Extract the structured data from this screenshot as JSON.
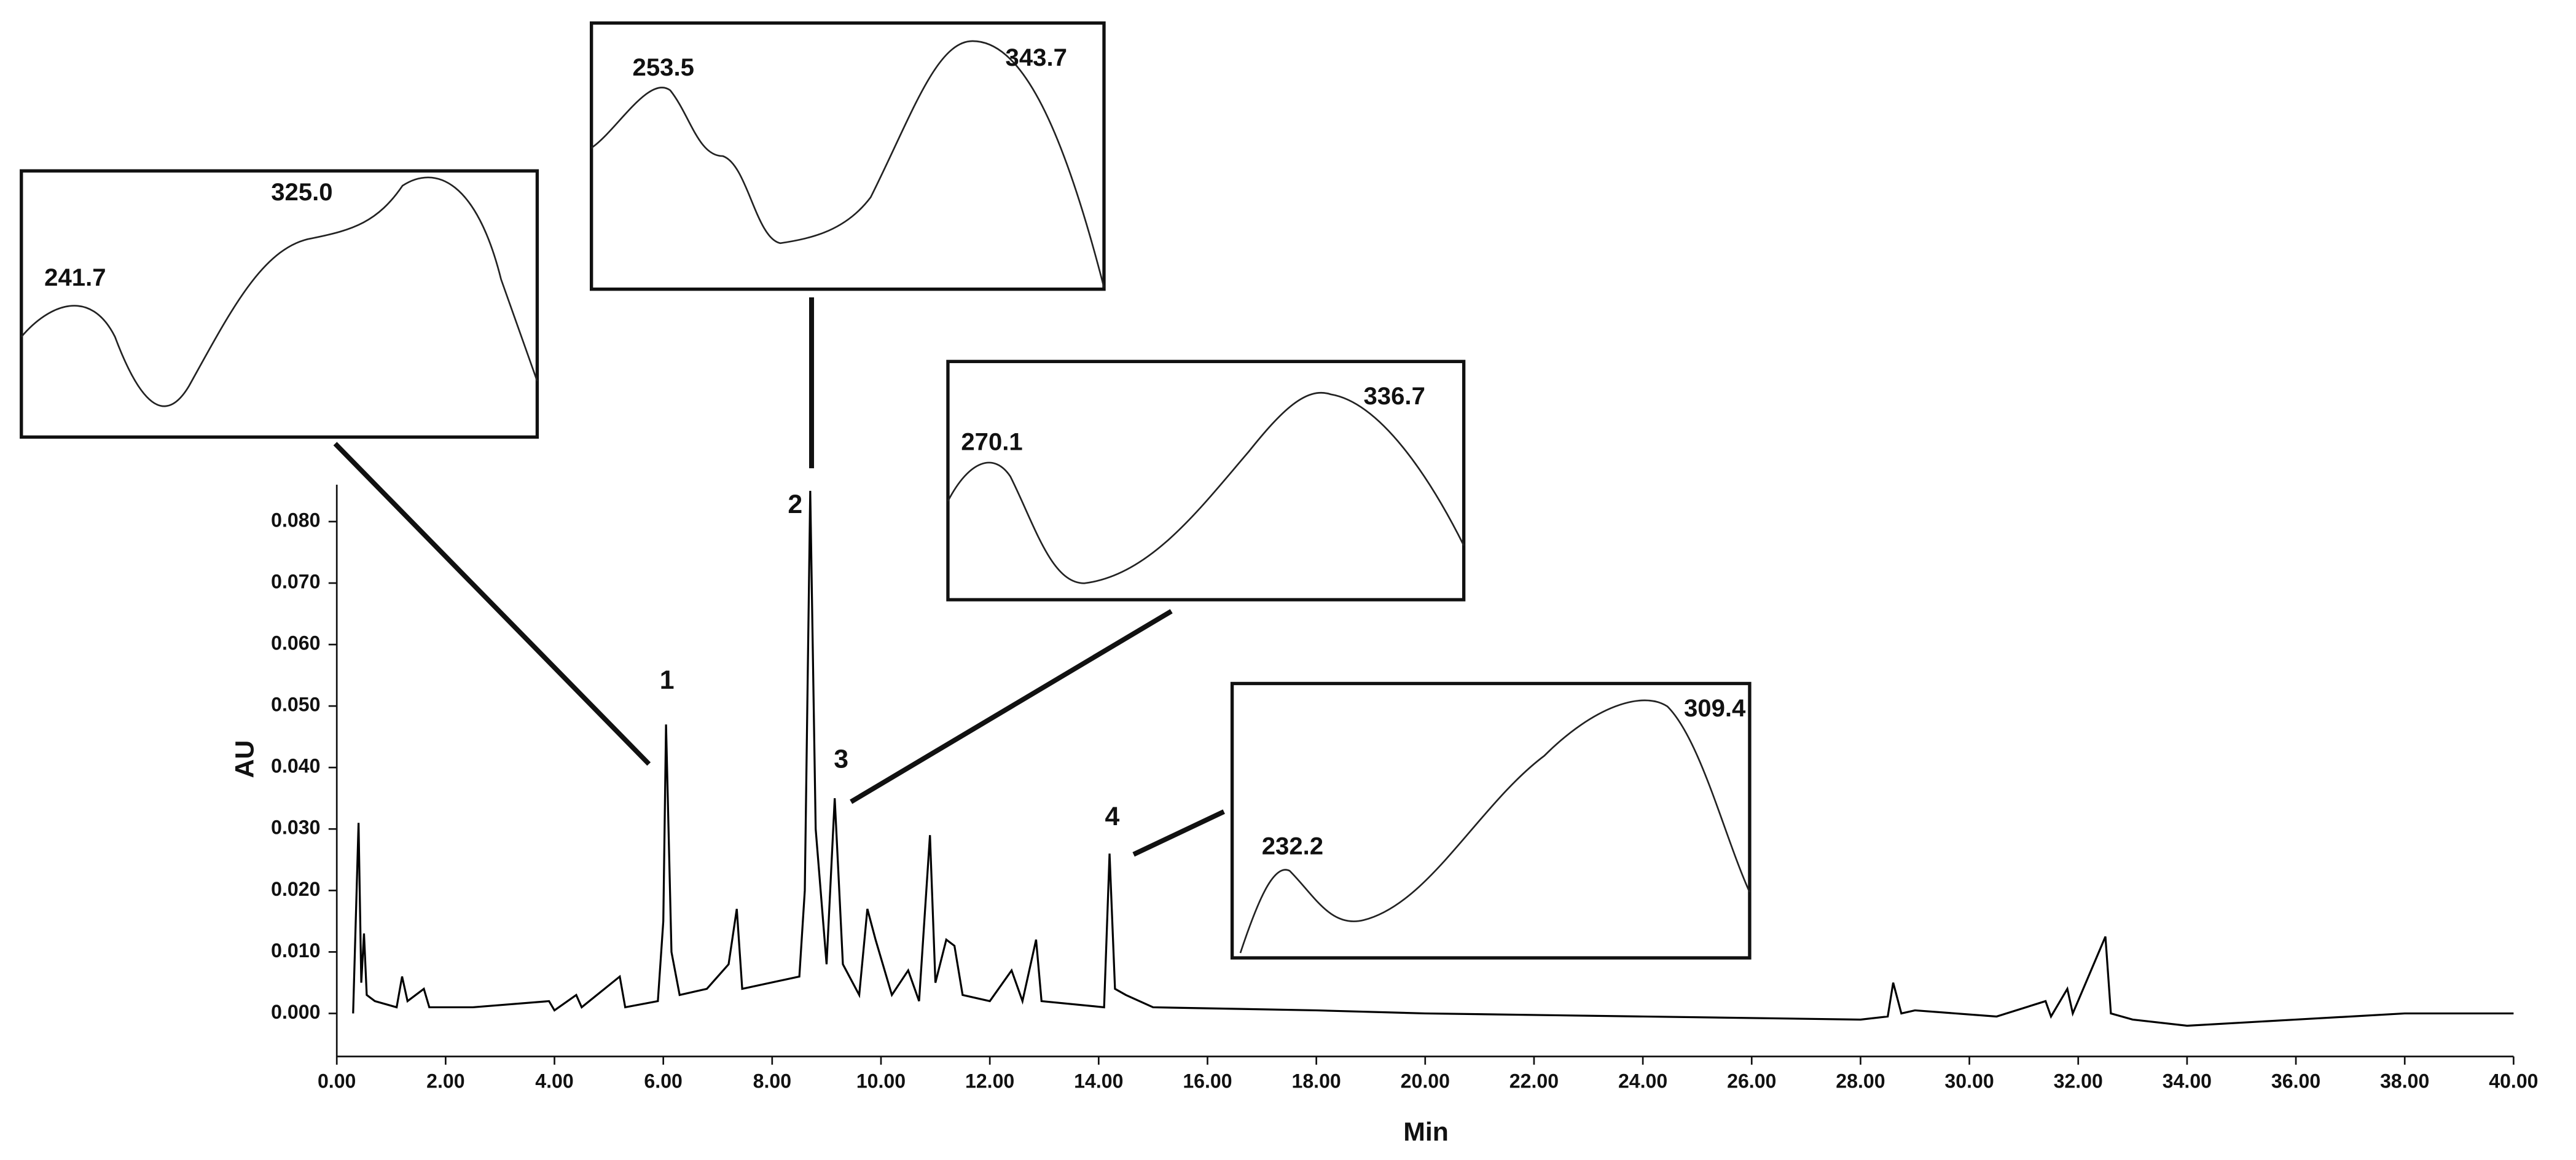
{
  "chart_data": {
    "type": "line",
    "x_label": "Min",
    "y_label": "AU",
    "xlim": [
      0,
      40
    ],
    "ylim": [
      -0.007,
      0.086
    ],
    "xticks": [
      {
        "value": 0,
        "label": "0.00"
      },
      {
        "value": 2,
        "label": "2.00"
      },
      {
        "value": 4,
        "label": "4.00"
      },
      {
        "value": 6,
        "label": "6.00"
      },
      {
        "value": 8,
        "label": "8.00"
      },
      {
        "value": 10,
        "label": "10.00"
      },
      {
        "value": 12,
        "label": "12.00"
      },
      {
        "value": 14,
        "label": "14.00"
      },
      {
        "value": 16,
        "label": "16.00"
      },
      {
        "value": 18,
        "label": "18.00"
      },
      {
        "value": 20,
        "label": "20.00"
      },
      {
        "value": 22,
        "label": "22.00"
      },
      {
        "value": 24,
        "label": "24.00"
      },
      {
        "value": 26,
        "label": "26.00"
      },
      {
        "value": 28,
        "label": "28.00"
      },
      {
        "value": 30,
        "label": "30.00"
      },
      {
        "value": 32,
        "label": "32.00"
      },
      {
        "value": 34,
        "label": "34.00"
      },
      {
        "value": 36,
        "label": "36.00"
      },
      {
        "value": 38,
        "label": "38.00"
      },
      {
        "value": 40,
        "label": "40.00"
      }
    ],
    "yticks": [
      {
        "value": 0,
        "label": "0.000"
      },
      {
        "value": 0.01,
        "label": "0.010"
      },
      {
        "value": 0.02,
        "label": "0.020"
      },
      {
        "value": 0.03,
        "label": "0.030"
      },
      {
        "value": 0.04,
        "label": "0.040"
      },
      {
        "value": 0.05,
        "label": "0.050"
      },
      {
        "value": 0.06,
        "label": "0.060"
      },
      {
        "value": 0.07,
        "label": "0.070"
      },
      {
        "value": 0.08,
        "label": "0.080"
      }
    ],
    "series": [
      {
        "color": "#000000",
        "x": [
          0.3,
          0.4,
          0.45,
          0.5,
          0.55,
          0.7,
          1.1,
          1.2,
          1.3,
          1.6,
          1.7,
          2.5,
          3.9,
          4.0,
          4.4,
          4.5,
          5.2,
          5.3,
          5.9,
          6.0,
          6.05,
          6.15,
          6.3,
          6.8,
          7.2,
          7.35,
          7.45,
          8.5,
          8.6,
          8.7,
          8.8,
          9.0,
          9.15,
          9.3,
          9.6,
          9.75,
          9.9,
          10.2,
          10.5,
          10.7,
          10.9,
          11.0,
          11.2,
          11.35,
          11.5,
          12.0,
          12.4,
          12.6,
          12.85,
          12.95,
          14.1,
          14.2,
          14.3,
          14.5,
          15,
          18,
          20,
          24,
          28,
          28.5,
          28.6,
          28.75,
          29,
          30.5,
          31.4,
          31.5,
          31.8,
          31.9,
          32.5,
          32.6,
          33,
          34,
          36,
          38,
          40
        ],
        "values": [
          0,
          0.031,
          0.005,
          0.013,
          0.003,
          0.002,
          0.001,
          0.006,
          0.002,
          0.004,
          0.001,
          0.001,
          0.002,
          0.0005,
          0.003,
          0.001,
          0.006,
          0.001,
          0.002,
          0.015,
          0.047,
          0.01,
          0.003,
          0.004,
          0.008,
          0.017,
          0.004,
          0.006,
          0.02,
          0.085,
          0.03,
          0.008,
          0.035,
          0.008,
          0.003,
          0.017,
          0.012,
          0.003,
          0.007,
          0.002,
          0.029,
          0.005,
          0.012,
          0.011,
          0.003,
          0.002,
          0.007,
          0.002,
          0.012,
          0.002,
          0.001,
          0.026,
          0.004,
          0.003,
          0.001,
          0.0005,
          0,
          -0.0005,
          -0.001,
          -0.0005,
          0.005,
          0,
          0.0005,
          -0.0005,
          0.002,
          -0.0005,
          0.004,
          0,
          0.0125,
          0,
          -0.001,
          -0.002,
          -0.001,
          0,
          0
        ]
      }
    ],
    "annotations": [
      "1",
      "2",
      "3",
      "4"
    ],
    "insets": [
      {
        "peaks": [
          "241.7",
          "325.0"
        ]
      },
      {
        "peaks": [
          "253.5",
          "343.7"
        ]
      },
      {
        "peaks": [
          "270.1",
          "336.7"
        ]
      },
      {
        "peaks": [
          "232.2",
          "309.4"
        ]
      }
    ]
  }
}
